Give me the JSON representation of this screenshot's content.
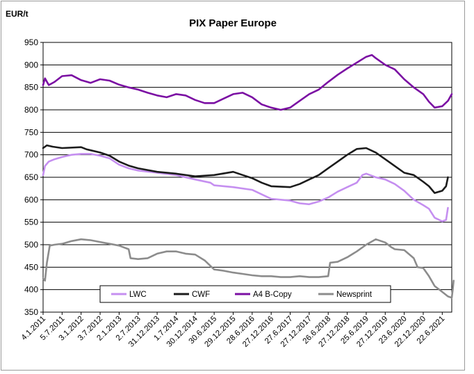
{
  "chart_data": {
    "type": "line",
    "title": "PIX Paper Europe",
    "ylabel": "EUR/t",
    "xlabel": "",
    "ylim": [
      350,
      950
    ],
    "yticks": [
      350,
      400,
      450,
      500,
      550,
      600,
      650,
      700,
      750,
      800,
      850,
      900,
      950
    ],
    "grid": true,
    "legend_position": "bottom-center",
    "x_tick_labels": [
      "4.1.2011",
      "5.7.2011",
      "3.1.2012",
      "3.7.2012",
      "2.1.2013",
      "2.7.2013",
      "31.12.2013",
      "1.7.2014",
      "30.12.2014",
      "30.6.2015",
      "29.12.2015",
      "28.6.2016",
      "27.12.2016",
      "27.6.2017",
      "27.12.2017",
      "26.6.2018",
      "27.12.2018",
      "25.6.2019",
      "27.12.2019",
      "23.6.2020",
      "22.12.2020",
      "22.6.2021"
    ],
    "x_range": [
      0,
      21.5
    ],
    "series": [
      {
        "name": "LWC",
        "color": "#c58ff0",
        "points": [
          [
            0,
            655
          ],
          [
            0.1,
            675
          ],
          [
            0.3,
            685
          ],
          [
            0.6,
            690
          ],
          [
            1,
            695
          ],
          [
            1.5,
            700
          ],
          [
            2,
            702
          ],
          [
            2.5,
            702
          ],
          [
            3,
            698
          ],
          [
            3.5,
            692
          ],
          [
            4,
            678
          ],
          [
            4.5,
            670
          ],
          [
            5,
            665
          ],
          [
            6,
            660
          ],
          [
            7,
            655
          ],
          [
            8,
            645
          ],
          [
            8.8,
            638
          ],
          [
            9,
            632
          ],
          [
            10,
            628
          ],
          [
            11,
            622
          ],
          [
            11.5,
            612
          ],
          [
            12,
            602
          ],
          [
            13,
            598
          ],
          [
            13.5,
            592
          ],
          [
            14,
            590
          ],
          [
            14.5,
            596
          ],
          [
            15,
            605
          ],
          [
            15.5,
            618
          ],
          [
            16,
            628
          ],
          [
            16.5,
            638
          ],
          [
            16.8,
            655
          ],
          [
            17,
            658
          ],
          [
            17.5,
            650
          ],
          [
            18,
            645
          ],
          [
            18.5,
            635
          ],
          [
            19,
            620
          ],
          [
            19.5,
            600
          ],
          [
            20,
            588
          ],
          [
            20.3,
            580
          ],
          [
            20.6,
            560
          ],
          [
            21,
            552
          ],
          [
            21.2,
            555
          ],
          [
            21.3,
            582
          ]
        ]
      },
      {
        "name": "CWF",
        "color": "#1c1c1c",
        "points": [
          [
            0,
            715
          ],
          [
            0.2,
            721
          ],
          [
            0.5,
            718
          ],
          [
            1,
            715
          ],
          [
            2,
            717
          ],
          [
            2.3,
            712
          ],
          [
            3,
            705
          ],
          [
            3.5,
            698
          ],
          [
            4,
            685
          ],
          [
            4.5,
            676
          ],
          [
            5,
            670
          ],
          [
            6,
            662
          ],
          [
            7,
            658
          ],
          [
            8,
            652
          ],
          [
            9,
            655
          ],
          [
            10,
            662
          ],
          [
            10.5,
            655
          ],
          [
            11,
            648
          ],
          [
            11.5,
            638
          ],
          [
            12,
            630
          ],
          [
            13,
            628
          ],
          [
            13.5,
            635
          ],
          [
            14,
            645
          ],
          [
            14.5,
            655
          ],
          [
            15,
            670
          ],
          [
            15.5,
            685
          ],
          [
            16,
            700
          ],
          [
            16.5,
            713
          ],
          [
            17,
            715
          ],
          [
            17.5,
            705
          ],
          [
            18,
            690
          ],
          [
            18.5,
            675
          ],
          [
            19,
            660
          ],
          [
            19.5,
            655
          ],
          [
            20,
            640
          ],
          [
            20.3,
            630
          ],
          [
            20.6,
            615
          ],
          [
            21,
            620
          ],
          [
            21.2,
            630
          ],
          [
            21.3,
            650
          ]
        ]
      },
      {
        "name": "A4 B-Copy",
        "color": "#7b0fa3",
        "points": [
          [
            0,
            855
          ],
          [
            0.1,
            870
          ],
          [
            0.3,
            855
          ],
          [
            0.6,
            862
          ],
          [
            1,
            875
          ],
          [
            1.5,
            877
          ],
          [
            2,
            866
          ],
          [
            2.5,
            860
          ],
          [
            3,
            868
          ],
          [
            3.5,
            865
          ],
          [
            4,
            856
          ],
          [
            4.5,
            850
          ],
          [
            5,
            845
          ],
          [
            5.5,
            838
          ],
          [
            6,
            832
          ],
          [
            6.5,
            828
          ],
          [
            7,
            835
          ],
          [
            7.5,
            832
          ],
          [
            8,
            822
          ],
          [
            8.5,
            815
          ],
          [
            9,
            815
          ],
          [
            9.5,
            825
          ],
          [
            10,
            835
          ],
          [
            10.5,
            838
          ],
          [
            11,
            828
          ],
          [
            11.5,
            812
          ],
          [
            12,
            805
          ],
          [
            12.5,
            800
          ],
          [
            13,
            805
          ],
          [
            13.5,
            820
          ],
          [
            14,
            835
          ],
          [
            14.5,
            845
          ],
          [
            15,
            862
          ],
          [
            15.5,
            878
          ],
          [
            16,
            892
          ],
          [
            16.5,
            905
          ],
          [
            17,
            918
          ],
          [
            17.3,
            922
          ],
          [
            17.5,
            915
          ],
          [
            18,
            900
          ],
          [
            18.5,
            890
          ],
          [
            19,
            868
          ],
          [
            19.5,
            850
          ],
          [
            20,
            835
          ],
          [
            20.3,
            818
          ],
          [
            20.6,
            805
          ],
          [
            21,
            808
          ],
          [
            21.3,
            820
          ],
          [
            21.5,
            835
          ]
        ]
      },
      {
        "name": "Newsprint",
        "color": "#8c8c8c",
        "points": [
          [
            0,
            425
          ],
          [
            0.1,
            420
          ],
          [
            0.2,
            460
          ],
          [
            0.35,
            498
          ],
          [
            0.6,
            500
          ],
          [
            1,
            502
          ],
          [
            1.5,
            508
          ],
          [
            2,
            512
          ],
          [
            2.5,
            510
          ],
          [
            3,
            506
          ],
          [
            3.5,
            502
          ],
          [
            4,
            498
          ],
          [
            4.5,
            490
          ],
          [
            4.6,
            470
          ],
          [
            5,
            468
          ],
          [
            5.5,
            470
          ],
          [
            6,
            480
          ],
          [
            6.5,
            485
          ],
          [
            7,
            485
          ],
          [
            7.5,
            480
          ],
          [
            8,
            478
          ],
          [
            8.5,
            465
          ],
          [
            9,
            445
          ],
          [
            9.5,
            442
          ],
          [
            10,
            438
          ],
          [
            10.5,
            435
          ],
          [
            11,
            432
          ],
          [
            11.5,
            430
          ],
          [
            12,
            430
          ],
          [
            12.5,
            428
          ],
          [
            13,
            428
          ],
          [
            13.5,
            430
          ],
          [
            14,
            428
          ],
          [
            14.5,
            428
          ],
          [
            15,
            430
          ],
          [
            15.1,
            460
          ],
          [
            15.5,
            462
          ],
          [
            16,
            472
          ],
          [
            16.5,
            485
          ],
          [
            17,
            500
          ],
          [
            17.5,
            512
          ],
          [
            18,
            505
          ],
          [
            18.3,
            495
          ],
          [
            18.5,
            490
          ],
          [
            19,
            488
          ],
          [
            19.5,
            470
          ],
          [
            19.7,
            450
          ],
          [
            20,
            448
          ],
          [
            20.3,
            430
          ],
          [
            20.6,
            408
          ],
          [
            21,
            395
          ],
          [
            21.3,
            385
          ],
          [
            21.5,
            382
          ],
          [
            21.55,
            400
          ],
          [
            21.6,
            420
          ]
        ]
      }
    ]
  }
}
